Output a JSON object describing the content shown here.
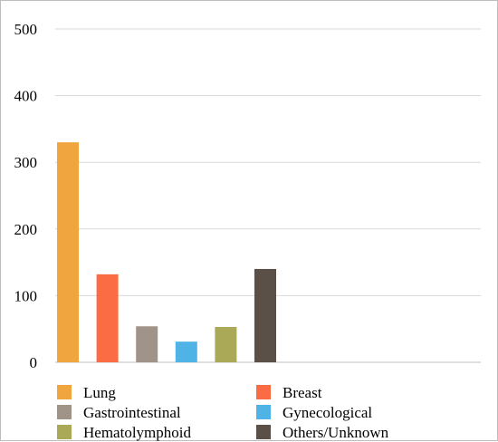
{
  "chart_data": {
    "type": "bar",
    "title": "",
    "xlabel": "",
    "ylabel": "",
    "ylim": [
      0,
      500
    ],
    "yticks": [
      0,
      100,
      200,
      300,
      400,
      500
    ],
    "grid": true,
    "legend_position": "bottom",
    "categories": [
      "Lung",
      "Breast",
      "Gastrointestinal",
      "Gynecological",
      "Hematolymphoid",
      "Others/Unknown"
    ],
    "values": [
      330,
      132,
      54,
      31,
      53,
      140
    ],
    "colors": [
      "#F0A53E",
      "#FB6B44",
      "#A09489",
      "#4FB3E6",
      "#A9A958",
      "#5A5047"
    ]
  }
}
